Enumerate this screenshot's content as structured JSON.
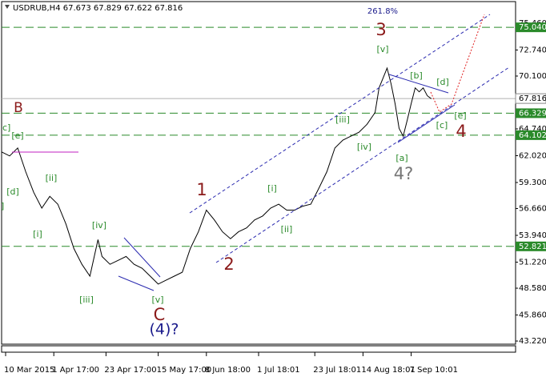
{
  "chart_data": {
    "type": "line",
    "title": "USDRUB,H4  67.673 67.829 67.622 67.816",
    "x": [
      0,
      2,
      4,
      6,
      8,
      10,
      12,
      14,
      16,
      18,
      20,
      22,
      24,
      25,
      27,
      29,
      31,
      33,
      35,
      37,
      39,
      41,
      43,
      45,
      47,
      49,
      51,
      53,
      55,
      57,
      59,
      61,
      63,
      65,
      67,
      69,
      71,
      73,
      75,
      77,
      79,
      81,
      83,
      85,
      87,
      89,
      91,
      93,
      94,
      96,
      97,
      98,
      99,
      100,
      101,
      102,
      103,
      104,
      105,
      106,
      107
    ],
    "values": [
      62.4,
      62.0,
      62.8,
      60.4,
      58.3,
      56.7,
      57.9,
      57.1,
      55.1,
      52.6,
      51.0,
      49.8,
      53.5,
      51.8,
      51.0,
      51.4,
      51.8,
      51.0,
      50.6,
      49.8,
      49.0,
      49.4,
      49.8,
      50.2,
      52.6,
      54.3,
      56.5,
      55.5,
      54.3,
      53.6,
      54.3,
      54.7,
      55.5,
      55.9,
      56.7,
      57.1,
      56.5,
      56.5,
      56.9,
      57.1,
      58.7,
      60.4,
      62.8,
      63.6,
      64.0,
      64.4,
      65.2,
      66.4,
      68.9,
      70.9,
      69.3,
      67.3,
      64.8,
      64.0,
      65.6,
      67.3,
      68.9,
      68.5,
      68.9,
      68.1,
      67.8
    ],
    "color": "#000000",
    "xlim": [
      0,
      128
    ],
    "ylim": [
      42.9,
      77.65
    ],
    "xticks": [
      {
        "value": 1,
        "label": "10 Mar 2015"
      },
      {
        "value": 13,
        "label": "1 Apr 17:00"
      },
      {
        "value": 26,
        "label": "23 Apr 17:00"
      },
      {
        "value": 39,
        "label": "15 May 17:00"
      },
      {
        "value": 51,
        "label": "8 Jun 18:00"
      },
      {
        "value": 64,
        "label": "1 Jul 18:01"
      },
      {
        "value": 78,
        "label": "23 Jul 18:01"
      },
      {
        "value": 90,
        "label": "14 Aug 18:01"
      },
      {
        "value": 102,
        "label": "7 Sep 10:01"
      }
    ],
    "yticks": [
      {
        "value": 75.46,
        "label": "75.460"
      },
      {
        "value": 72.74,
        "label": "72.740"
      },
      {
        "value": 70.1,
        "label": "70.100"
      },
      {
        "value": 64.74,
        "label": "64.740"
      },
      {
        "value": 62.02,
        "label": "62.020"
      },
      {
        "value": 59.3,
        "label": "59.300"
      },
      {
        "value": 56.66,
        "label": "56.660"
      },
      {
        "value": 53.94,
        "label": "53.940"
      },
      {
        "value": 51.22,
        "label": "51.220"
      },
      {
        "value": 48.58,
        "label": "48.580"
      },
      {
        "value": 45.86,
        "label": "45.860"
      },
      {
        "value": 43.22,
        "label": "43.220"
      }
    ],
    "levels": [
      {
        "value": 75.04,
        "label": "75.040"
      },
      {
        "value": 66.329,
        "label": "66.329"
      },
      {
        "value": 64.102,
        "label": "64.102"
      },
      {
        "value": 52.821,
        "label": "52.821"
      }
    ],
    "level_color": "#2a8a2a",
    "current_price": {
      "value": 67.816,
      "label": "67.816"
    },
    "annotations": [
      "261.8%",
      "3",
      "[v]",
      "[b]",
      "[d]",
      "[c]",
      "[e]",
      "4",
      "[a]",
      "4?",
      "[iv]",
      "[iii]",
      "[i]",
      "[ii]",
      "1",
      "2",
      "[iv]",
      "[i]",
      "[ii]",
      "[iii]",
      "[v]",
      "C",
      "(4)?",
      "B",
      "c]",
      "[e]",
      "[d]",
      "]"
    ]
  }
}
